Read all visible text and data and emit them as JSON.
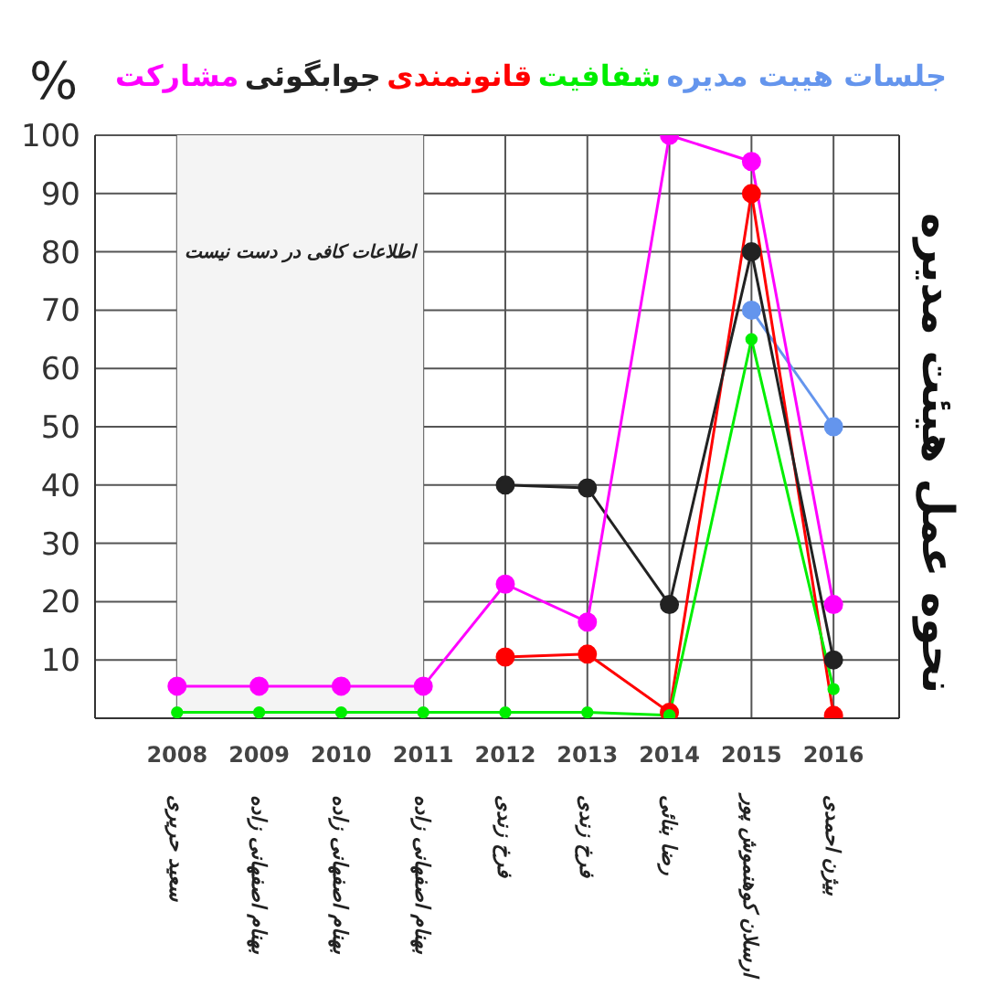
{
  "chart_data": {
    "type": "line",
    "ylabel": "%",
    "y2label": "نحوه عمل هیئت مدیره",
    "categories": [
      "2008\nسعید حریری",
      "2009\nبهنام اصفهانی زاده",
      "2010\nبهنام اصفهانی زاده",
      "2011\nبهنام اصفهانی زاده",
      "2012\nفرخ زندی",
      "2013\nفرخ زندی",
      "2014\nرضا بنائی",
      "2015\nارسلان کوهنموش پور",
      "2016\nبیژن احمدی"
    ],
    "series": [
      {
        "name": "جلسات هیبت مدیره",
        "color": "#6495ed",
        "values": [
          null,
          null,
          null,
          null,
          null,
          null,
          null,
          70,
          50
        ]
      },
      {
        "name": "شفافیت",
        "color": "#00ee00",
        "values": [
          1,
          1,
          1,
          1,
          1,
          1,
          0.5,
          65,
          5
        ]
      },
      {
        "name": "قانونمندی",
        "color": "#ff0000",
        "values": [
          null,
          null,
          null,
          null,
          10.5,
          11,
          1,
          90,
          0.5
        ]
      },
      {
        "name": "جوابگوئی",
        "color": "#222222",
        "values": [
          null,
          null,
          null,
          null,
          40,
          39.5,
          19.5,
          80,
          10
        ]
      },
      {
        "name": "مشارکت",
        "color": "#ff00ff",
        "values": [
          5.5,
          5.5,
          5.5,
          5.5,
          23,
          16.5,
          100,
          95.5,
          19.5
        ]
      }
    ],
    "ylim": [
      0,
      100
    ],
    "yticks": [
      10,
      20,
      30,
      40,
      50,
      60,
      70,
      80,
      90,
      100
    ],
    "bands": [
      {
        "axis": "x",
        "from": "2008\nسعید حریری",
        "to": "2011\nبهنام اصفهانی زاده",
        "label": "اطلاعات کافی در دست نیست",
        "color": "#f4f4f4"
      }
    ],
    "grid": true,
    "legend": "top",
    "marker": "circle",
    "line_style": "solid"
  }
}
